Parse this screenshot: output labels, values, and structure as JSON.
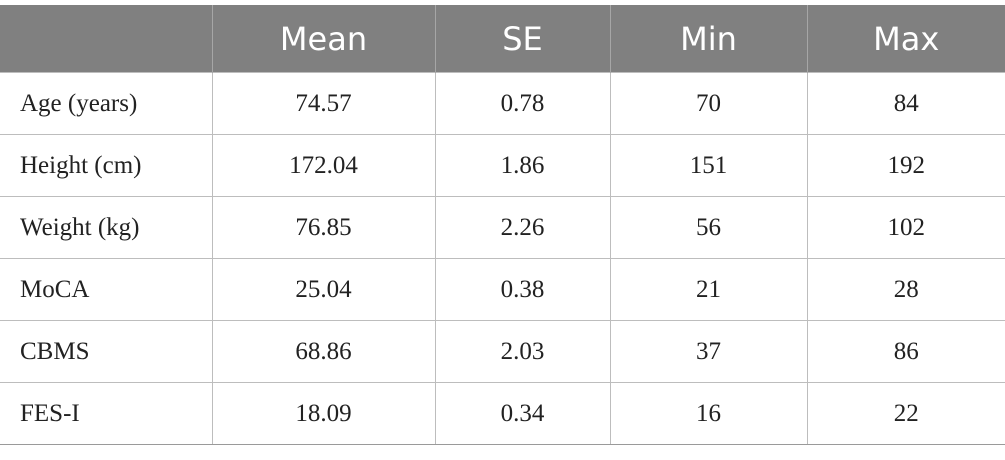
{
  "table": {
    "columns": [
      "Mean",
      "SE",
      "Min",
      "Max"
    ],
    "rows": [
      [
        "Age (years)",
        "74.57",
        "0.78",
        "70",
        "84"
      ],
      [
        "Height (cm)",
        "172.04",
        "1.86",
        "151",
        "192"
      ],
      [
        "Weight (kg)",
        "76.85",
        "2.26",
        "56",
        "102"
      ],
      [
        "MoCA",
        "25.04",
        "0.38",
        "21",
        "28"
      ],
      [
        "CBMS",
        "68.86",
        "2.03",
        "37",
        "86"
      ],
      [
        "FES-I",
        "18.09",
        "0.34",
        "16",
        "22"
      ]
    ]
  }
}
